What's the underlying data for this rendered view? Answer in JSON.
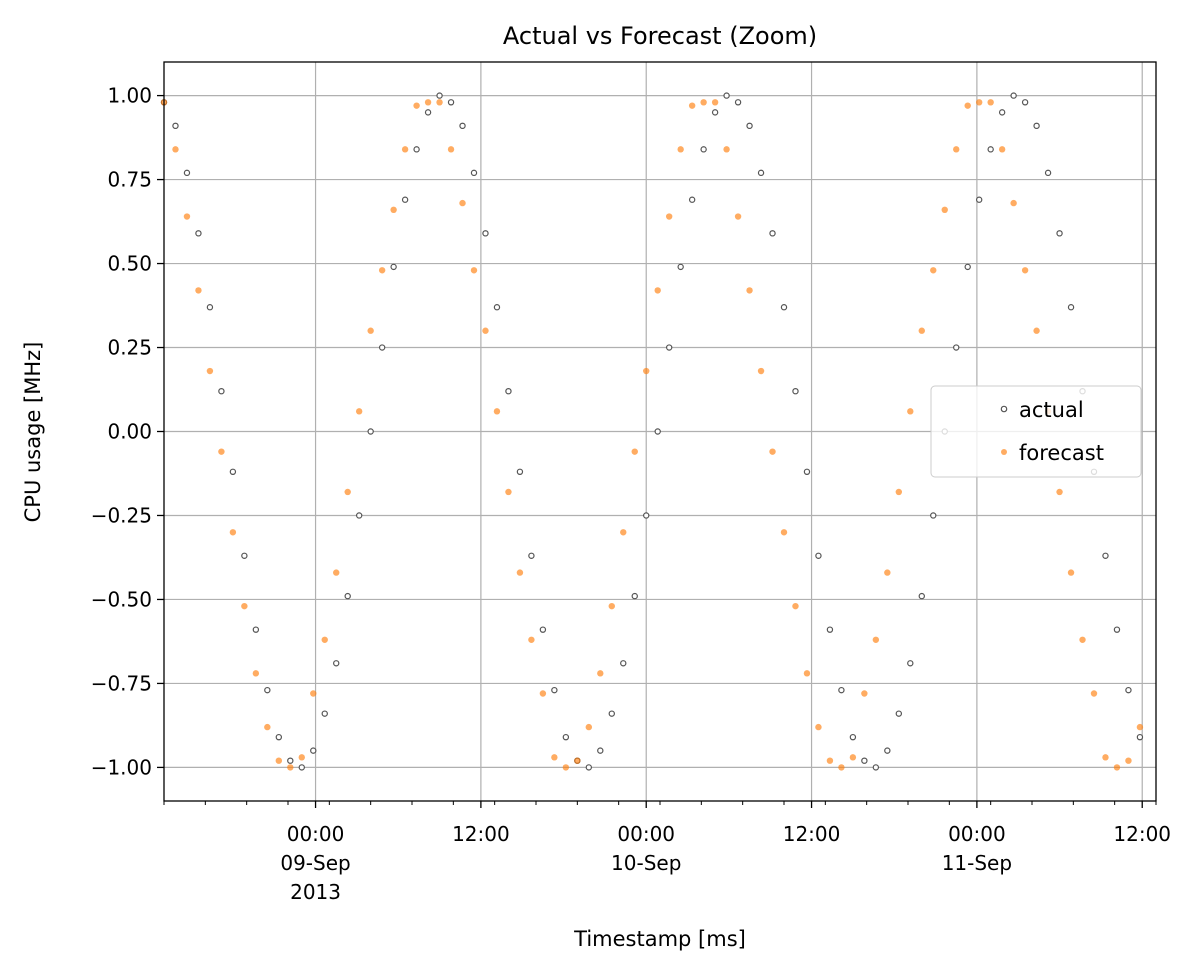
{
  "chart_data": {
    "type": "scatter",
    "title": "Actual vs Forecast (Zoom)",
    "xlabel": "Timestamp [ms]",
    "ylabel": "CPU usage [MHz]",
    "x_type": "datetime",
    "xlim": [
      "2013-09-08T13:00",
      "2013-09-11T13:00"
    ],
    "ylim": [
      -1.1,
      1.1
    ],
    "grid": true,
    "legend_position": "center-right",
    "x_ticks": [
      {
        "at": "2013-09-09T00:00",
        "lines": [
          "00:00",
          "09-Sep",
          "2013"
        ]
      },
      {
        "at": "2013-09-09T12:00",
        "lines": [
          "12:00"
        ]
      },
      {
        "at": "2013-09-10T00:00",
        "lines": [
          "00:00",
          "10-Sep"
        ]
      },
      {
        "at": "2013-09-10T12:00",
        "lines": [
          "12:00"
        ]
      },
      {
        "at": "2013-09-11T00:00",
        "lines": [
          "00:00",
          "11-Sep"
        ]
      },
      {
        "at": "2013-09-11T12:00",
        "lines": [
          "12:00"
        ]
      }
    ],
    "y_ticks": [
      {
        "value": 1.0,
        "label": "1.00"
      },
      {
        "value": 0.75,
        "label": "0.75"
      },
      {
        "value": 0.5,
        "label": "0.50"
      },
      {
        "value": 0.25,
        "label": "0.25"
      },
      {
        "value": 0.0,
        "label": "0.00"
      },
      {
        "value": -0.25,
        "label": "−0.25"
      },
      {
        "value": -0.5,
        "label": "−0.50"
      },
      {
        "value": -0.75,
        "label": "−0.75"
      },
      {
        "value": -1.0,
        "label": "−1.00"
      }
    ],
    "sampling": {
      "start": "2013-09-08T13:00",
      "interval_minutes": 50
    },
    "series": [
      {
        "name": "actual",
        "color": "#555555",
        "marker": "ring",
        "pattern_note": "periodic sinusoid-like level sets, period 24h",
        "y": [
          0.98,
          0.91,
          0.77,
          0.59,
          0.37,
          0.12,
          -0.12,
          -0.37,
          -0.59,
          -0.77,
          -0.91,
          -0.98,
          -1.0,
          -0.95,
          -0.84,
          -0.69,
          -0.49,
          -0.25,
          0.0,
          0.25,
          0.49,
          0.69,
          0.84,
          0.95,
          1.0,
          0.98,
          0.91,
          0.77,
          0.59,
          0.37,
          0.12,
          -0.12,
          -0.37,
          -0.59,
          -0.77,
          -0.91,
          -0.98,
          -1.0,
          -0.95,
          -0.84,
          -0.69,
          -0.49,
          -0.25,
          0.0,
          0.25,
          0.49,
          0.69,
          0.84,
          0.95,
          1.0,
          0.98,
          0.91,
          0.77,
          0.59,
          0.37,
          0.12,
          -0.12,
          -0.37,
          -0.59,
          -0.77,
          -0.91,
          -0.98,
          -1.0,
          -0.95,
          -0.84,
          -0.69,
          -0.49,
          -0.25,
          0.0,
          0.25,
          0.49,
          0.69,
          0.84,
          0.95,
          1.0,
          0.98,
          0.91,
          0.77,
          0.59,
          0.37,
          0.12,
          -0.12,
          -0.37,
          -0.59,
          -0.77,
          -0.91
        ]
      },
      {
        "name": "forecast",
        "color": "#ff7f0e",
        "marker": "dot",
        "pattern_note": "periodic, levels slightly offset from actual, heavy clustering near ±1",
        "y": [
          0.98,
          0.84,
          0.64,
          0.42,
          0.18,
          -0.06,
          -0.3,
          -0.52,
          -0.72,
          -0.88,
          -0.98,
          -1.0,
          -0.97,
          -0.78,
          -0.62,
          -0.42,
          -0.18,
          0.06,
          0.3,
          0.48,
          0.66,
          0.84,
          0.97,
          0.98,
          0.98,
          0.84,
          0.68,
          0.48,
          0.3,
          0.06,
          -0.18,
          -0.42,
          -0.62,
          -0.78,
          -0.97,
          -1.0,
          -0.98,
          -0.88,
          -0.72,
          -0.52,
          -0.3,
          -0.06,
          0.18,
          0.42,
          0.64,
          0.84,
          0.97,
          0.98,
          0.98,
          0.84,
          0.64,
          0.42,
          0.18,
          -0.06,
          -0.3,
          -0.52,
          -0.72,
          -0.88,
          -0.98,
          -1.0,
          -0.97,
          -0.78,
          -0.62,
          -0.42,
          -0.18,
          0.06,
          0.3,
          0.48,
          0.66,
          0.84,
          0.97,
          0.98,
          0.98,
          0.84,
          0.68,
          0.48,
          0.3,
          0.06,
          -0.18,
          -0.42,
          -0.62,
          -0.78,
          -0.97,
          -1.0,
          -0.98,
          -0.88
        ]
      }
    ]
  }
}
